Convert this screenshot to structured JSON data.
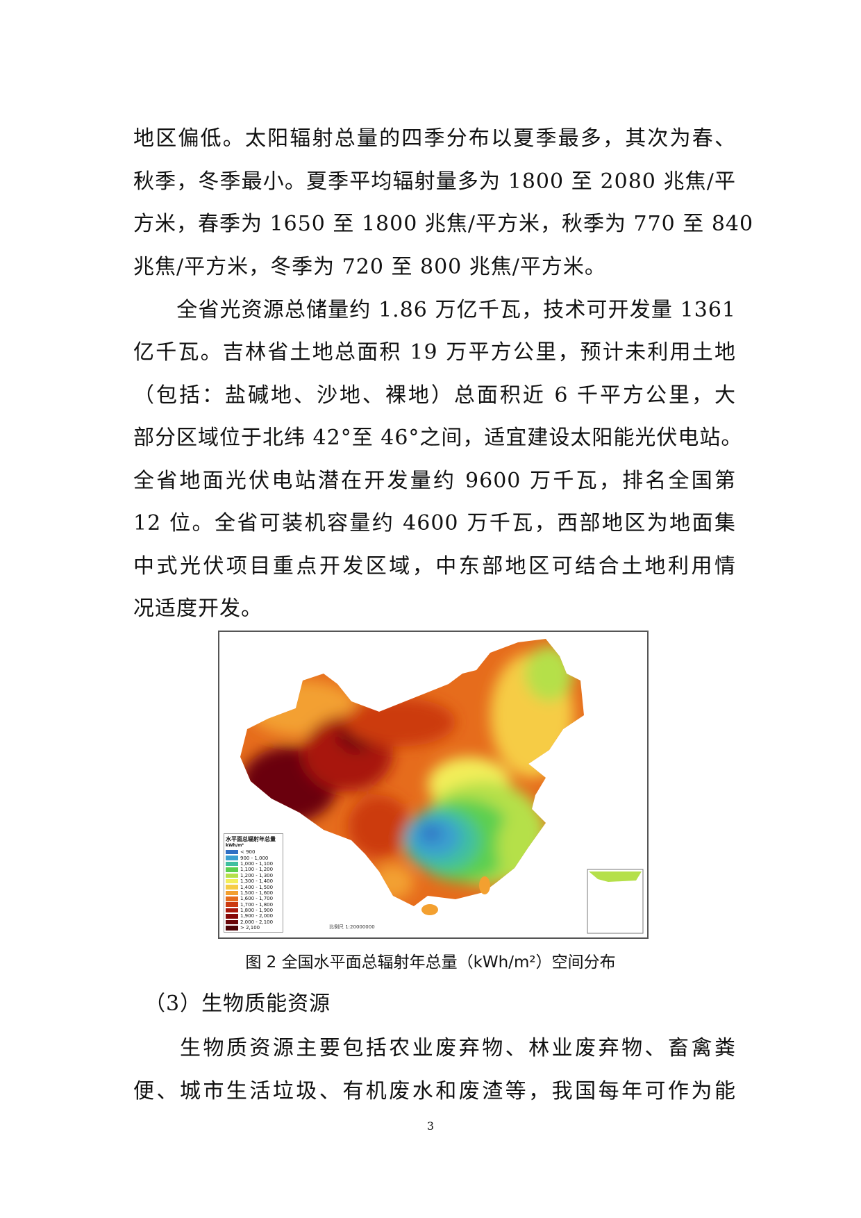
{
  "body_lines_top": [
    "地区偏低。太阳辐射总量的四季分布以夏季最多，其次为春、",
    "秋季，冬季最小。夏季平均辐射量多为 1800 至 2080 兆焦/平",
    "方米，春季为 1650 至 1800 兆焦/平方米，秋季为 770 至 840",
    "兆焦/平方米，冬季为 720 至 800 兆焦/平方米。",
    "　　全省光资源总储量约 1.86 万亿千瓦，技术可开发量 1361",
    "亿千瓦。吉林省土地总面积 19 万平方公里，预计未利用土地",
    "（包括：盐碱地、沙地、裸地）总面积近 6 千平方公里，大",
    "部分区域位于北纬 42°至 46°之间，适宜建设太阳能光伏电站。",
    "全省地面光伏电站潜在开发量约 9600 万千瓦，排名全国第",
    "12 位。全省可装机容量约 4600 万千瓦，西部地区为地面集",
    "中式光伏项目重点开发区域，中东部地区可结合土地利用情",
    "况适度开发。"
  ],
  "figure": {
    "legend_title": "水平面总辐射年总量",
    "legend_unit": "kWh/m²",
    "legend": [
      {
        "label": "< 900",
        "color": "#2f6fc4"
      },
      {
        "label": "900 - 1,000",
        "color": "#3a9fd0"
      },
      {
        "label": "1,000 - 1,100",
        "color": "#3fbfa0"
      },
      {
        "label": "1,100 - 1,200",
        "color": "#5ccf4f"
      },
      {
        "label": "1,200 - 1,300",
        "color": "#b5e04a"
      },
      {
        "label": "1,300 - 1,400",
        "color": "#f3ee5a"
      },
      {
        "label": "1,400 - 1,500",
        "color": "#f6cc45"
      },
      {
        "label": "1,500 - 1,600",
        "color": "#f3a030"
      },
      {
        "label": "1,600 - 1,700",
        "color": "#e66c1c"
      },
      {
        "label": "1,700 - 1,800",
        "color": "#cc3a10"
      },
      {
        "label": "1,800 - 1,900",
        "color": "#a8180c"
      },
      {
        "label": "1,900 - 2,000",
        "color": "#860808"
      },
      {
        "label": "2,000 - 2,100",
        "color": "#6a0508"
      },
      {
        "label": "> 2,100",
        "color": "#4e0306"
      }
    ],
    "scale": "比例尺 1:20000000",
    "caption": "图 2 全国水平面总辐射年总量（kWh/m²）空间分布"
  },
  "section_heading": "　（3）生物质能资源",
  "body_lines_bottom": [
    "　　生物质资源主要包括农业废弃物、林业废弃物、畜禽粪",
    "便、城市生活垃圾、有机废水和废渣等，我国每年可作为能"
  ],
  "page_number": "3"
}
